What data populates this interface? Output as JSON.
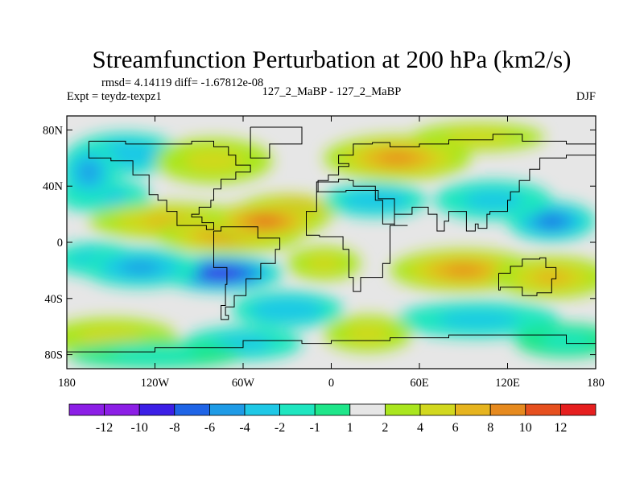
{
  "chart_data": {
    "type": "heatmap",
    "title": "Streamfunction Perturbation at 200 hPa (km2/s)",
    "stats_text": "rmsd= 4.14119 diff= -1.67812e-08",
    "left_label": "Expt = teydz-texpz1",
    "center_label": "127_2_MaBP - 127_2_MaBP",
    "right_label": "DJF",
    "x_ticks": [
      "180",
      "120W",
      "60W",
      "0",
      "60E",
      "120E",
      "180"
    ],
    "y_ticks": [
      "80N",
      "40N",
      "0",
      "40S",
      "80S"
    ],
    "xlim": [
      -180,
      180
    ],
    "ylim": [
      -90,
      90
    ],
    "colorbar_labels": [
      "-12",
      "-10",
      "-8",
      "-6",
      "-4",
      "-2",
      "-1",
      "1",
      "2",
      "4",
      "6",
      "8",
      "10",
      "12"
    ],
    "colorbar_colors": [
      "#8c1fe6",
      "#3c1fe6",
      "#1f64e6",
      "#1f9be6",
      "#1fc8e6",
      "#1fe6c0",
      "#1fe68a",
      "#e6e6e6",
      "#aae61f",
      "#d2d81f",
      "#e6b41f",
      "#e68a1f",
      "#e6501f",
      "#e61f1f"
    ],
    "blobs": [
      {
        "lon": -140,
        "lat": 63,
        "w": 38,
        "h": 15,
        "value": -5
      },
      {
        "lon": -155,
        "lat": 33,
        "w": 32,
        "h": 12,
        "value": -4
      },
      {
        "lon": -80,
        "lat": 58,
        "w": 40,
        "h": 16,
        "value": 4
      },
      {
        "lon": -110,
        "lat": 15,
        "w": 55,
        "h": 13,
        "value": 5
      },
      {
        "lon": -70,
        "lat": 5,
        "w": 50,
        "h": 13,
        "value": 7
      },
      {
        "lon": -30,
        "lat": 22,
        "w": 34,
        "h": 12,
        "value": 11
      },
      {
        "lon": -45,
        "lat": 15,
        "w": 40,
        "h": 13,
        "value": 9
      },
      {
        "lon": -165,
        "lat": 50,
        "w": 20,
        "h": 22,
        "value": -6
      },
      {
        "lon": -160,
        "lat": -12,
        "w": 30,
        "h": 12,
        "value": -4
      },
      {
        "lon": -75,
        "lat": -22,
        "w": 42,
        "h": 13,
        "value": -11
      },
      {
        "lon": -130,
        "lat": -18,
        "w": 40,
        "h": 14,
        "value": -6
      },
      {
        "lon": -30,
        "lat": -48,
        "w": 38,
        "h": 13,
        "value": -5
      },
      {
        "lon": -150,
        "lat": -68,
        "w": 45,
        "h": 14,
        "value": 4
      },
      {
        "lon": -60,
        "lat": -72,
        "w": 40,
        "h": 12,
        "value": -4
      },
      {
        "lon": -120,
        "lat": -80,
        "w": 60,
        "h": 10,
        "value": -3
      },
      {
        "lon": 45,
        "lat": 60,
        "w": 50,
        "h": 16,
        "value": 7
      },
      {
        "lon": 100,
        "lat": 75,
        "w": 45,
        "h": 10,
        "value": 3
      },
      {
        "lon": 30,
        "lat": 30,
        "w": 35,
        "h": 12,
        "value": -5
      },
      {
        "lon": 150,
        "lat": 15,
        "w": 30,
        "h": 14,
        "value": -8
      },
      {
        "lon": 110,
        "lat": 30,
        "w": 40,
        "h": 14,
        "value": -4
      },
      {
        "lon": 90,
        "lat": -20,
        "w": 50,
        "h": 15,
        "value": 7
      },
      {
        "lon": 150,
        "lat": -25,
        "w": 40,
        "h": 15,
        "value": 5
      },
      {
        "lon": 100,
        "lat": -55,
        "w": 55,
        "h": 13,
        "value": -4
      },
      {
        "lon": 25,
        "lat": -65,
        "w": 30,
        "h": 13,
        "value": 3
      },
      {
        "lon": 160,
        "lat": -70,
        "w": 35,
        "h": 12,
        "value": -3
      },
      {
        "lon": -5,
        "lat": -15,
        "w": 25,
        "h": 12,
        "value": 3
      }
    ],
    "coastlines": [
      [
        [
          -165,
          72
        ],
        [
          -140,
          70
        ],
        [
          -125,
          70
        ],
        [
          -95,
          72
        ],
        [
          -80,
          68
        ],
        [
          -70,
          62
        ],
        [
          -65,
          55
        ],
        [
          -55,
          50
        ],
        [
          -65,
          45
        ],
        [
          -75,
          38
        ],
        [
          -80,
          30
        ],
        [
          -82,
          25
        ],
        [
          -90,
          20
        ],
        [
          -95,
          18
        ],
        [
          -88,
          14
        ],
        [
          -80,
          9
        ],
        [
          -85,
          12
        ],
        [
          -105,
          22
        ],
        [
          -112,
          30
        ],
        [
          -118,
          34
        ],
        [
          -124,
          42
        ],
        [
          -124,
          48
        ],
        [
          -135,
          58
        ],
        [
          -150,
          60
        ],
        [
          -165,
          62
        ],
        [
          -165,
          72
        ]
      ],
      [
        [
          -80,
          8
        ],
        [
          -75,
          11
        ],
        [
          -62,
          11
        ],
        [
          -50,
          3
        ],
        [
          -35,
          -5
        ],
        [
          -38,
          -15
        ],
        [
          -48,
          -26
        ],
        [
          -58,
          -38
        ],
        [
          -66,
          -46
        ],
        [
          -72,
          -52
        ],
        [
          -70,
          -55
        ],
        [
          -75,
          -45
        ],
        [
          -72,
          -30
        ],
        [
          -71,
          -18
        ],
        [
          -80,
          -5
        ],
        [
          -80,
          8
        ]
      ],
      [
        [
          -55,
          82
        ],
        [
          -20,
          82
        ],
        [
          -20,
          70
        ],
        [
          -42,
          60
        ],
        [
          -55,
          68
        ],
        [
          -55,
          82
        ]
      ],
      [
        [
          -10,
          36
        ],
        [
          -5,
          36
        ],
        [
          10,
          37
        ],
        [
          32,
          31
        ],
        [
          43,
          12
        ],
        [
          52,
          12
        ],
        [
          40,
          -2
        ],
        [
          40,
          -15
        ],
        [
          35,
          -25
        ],
        [
          20,
          -35
        ],
        [
          15,
          -25
        ],
        [
          12,
          -5
        ],
        [
          8,
          4
        ],
        [
          -8,
          5
        ],
        [
          -17,
          15
        ],
        [
          -17,
          22
        ],
        [
          -10,
          36
        ]
      ],
      [
        [
          -10,
          36
        ],
        [
          -9,
          44
        ],
        [
          -2,
          48
        ],
        [
          5,
          54
        ],
        [
          12,
          56
        ],
        [
          5,
          62
        ],
        [
          15,
          70
        ],
        [
          28,
          71
        ],
        [
          40,
          68
        ],
        [
          60,
          70
        ],
        [
          80,
          73
        ],
        [
          110,
          77
        ],
        [
          130,
          72
        ],
        [
          160,
          70
        ],
        [
          180,
          68
        ],
        [
          180,
          62
        ],
        [
          160,
          60
        ],
        [
          142,
          52
        ],
        [
          135,
          44
        ],
        [
          128,
          36
        ],
        [
          122,
          30
        ],
        [
          120,
          22
        ],
        [
          108,
          20
        ],
        [
          106,
          10
        ],
        [
          100,
          13
        ],
        [
          98,
          8
        ],
        [
          92,
          22
        ],
        [
          80,
          15
        ],
        [
          77,
          8
        ],
        [
          72,
          20
        ],
        [
          66,
          25
        ],
        [
          57,
          25
        ],
        [
          55,
          20
        ],
        [
          43,
          13
        ],
        [
          35,
          30
        ],
        [
          30,
          40
        ],
        [
          26,
          40
        ],
        [
          15,
          44
        ],
        [
          12,
          45
        ],
        [
          5,
          43
        ],
        [
          -5,
          43
        ],
        [
          -10,
          36
        ]
      ],
      [
        [
          114,
          -22
        ],
        [
          122,
          -17
        ],
        [
          130,
          -12
        ],
        [
          137,
          -12
        ],
        [
          142,
          -11
        ],
        [
          146,
          -18
        ],
        [
          153,
          -26
        ],
        [
          150,
          -36
        ],
        [
          140,
          -38
        ],
        [
          130,
          -32
        ],
        [
          115,
          -34
        ],
        [
          114,
          -22
        ]
      ],
      [
        [
          -180,
          -78
        ],
        [
          -120,
          -75
        ],
        [
          -60,
          -70
        ],
        [
          -20,
          -72
        ],
        [
          0,
          -70
        ],
        [
          40,
          -68
        ],
        [
          80,
          -66
        ],
        [
          120,
          -66
        ],
        [
          160,
          -72
        ],
        [
          180,
          -78
        ]
      ]
    ]
  }
}
